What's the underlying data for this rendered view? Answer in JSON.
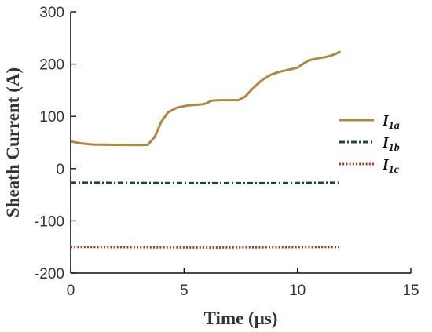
{
  "chart_data": {
    "type": "line",
    "xlabel": "Time (μs)",
    "ylabel": "Sheath Current (A)",
    "xlim": [
      0,
      15
    ],
    "ylim": [
      -200,
      300
    ],
    "x_ticks": [
      "0",
      "5",
      "10",
      "15"
    ],
    "y_ticks": [
      "-200",
      "-100",
      "0",
      "100",
      "200",
      "300"
    ],
    "grid": false,
    "legend_position": "right",
    "series": [
      {
        "name": "I1a",
        "label_main": "I",
        "label_sub": "1a",
        "color": "#b08840",
        "dash": "solid",
        "points": [
          [
            0,
            52
          ],
          [
            0.5,
            48
          ],
          [
            1,
            46
          ],
          [
            2,
            45.5
          ],
          [
            3,
            45
          ],
          [
            3.4,
            45.5
          ],
          [
            3.7,
            60
          ],
          [
            4.0,
            90
          ],
          [
            4.3,
            108
          ],
          [
            4.7,
            117
          ],
          [
            5.2,
            121
          ],
          [
            5.8,
            123
          ],
          [
            6.0,
            125
          ],
          [
            6.2,
            130
          ],
          [
            6.5,
            131
          ],
          [
            7.0,
            131
          ],
          [
            7.4,
            131
          ],
          [
            7.7,
            138
          ],
          [
            8.0,
            152
          ],
          [
            8.4,
            168
          ],
          [
            8.8,
            179
          ],
          [
            9.2,
            185
          ],
          [
            9.6,
            189
          ],
          [
            10.0,
            193
          ],
          [
            10.2,
            199
          ],
          [
            10.5,
            207
          ],
          [
            10.9,
            211
          ],
          [
            11.3,
            214
          ],
          [
            11.6,
            218
          ],
          [
            11.9,
            224
          ]
        ]
      },
      {
        "name": "I1b",
        "label_main": "I",
        "label_sub": "1b",
        "color": "#1e4a2a",
        "dash": "dashdot",
        "points": [
          [
            0,
            -27
          ],
          [
            3,
            -27.5
          ],
          [
            6,
            -28
          ],
          [
            9,
            -28
          ],
          [
            11.9,
            -27
          ]
        ]
      },
      {
        "name": "I1c",
        "label_main": "I",
        "label_sub": "1c",
        "color": "#a8341e",
        "dash": "dotted",
        "points": [
          [
            0,
            -150
          ],
          [
            3,
            -150.5
          ],
          [
            6,
            -151
          ],
          [
            9,
            -150.5
          ],
          [
            11.9,
            -150
          ]
        ]
      }
    ]
  }
}
